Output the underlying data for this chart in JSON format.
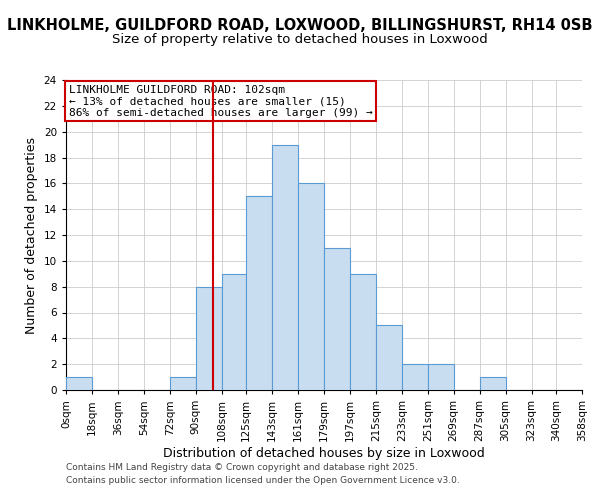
{
  "title1": "LINKHOLME, GUILDFORD ROAD, LOXWOOD, BILLINGSHURST, RH14 0SB",
  "title2": "Size of property relative to detached houses in Loxwood",
  "xlabel": "Distribution of detached houses by size in Loxwood",
  "ylabel": "Number of detached properties",
  "bin_edges": [
    0,
    18,
    36,
    54,
    72,
    90,
    108,
    125,
    143,
    161,
    179,
    197,
    215,
    233,
    251,
    269,
    287,
    305,
    323,
    340,
    358
  ],
  "bin_counts": [
    1,
    0,
    0,
    0,
    1,
    8,
    9,
    15,
    19,
    16,
    11,
    9,
    5,
    2,
    2,
    0,
    1,
    0,
    0,
    0
  ],
  "bar_color": "#c9ddf0",
  "bar_edge_color": "#5b9bd5",
  "vline_x": 102,
  "vline_color": "#cc0000",
  "annotation_text": "LINKHOLME GUILDFORD ROAD: 102sqm\n← 13% of detached houses are smaller (15)\n86% of semi-detached houses are larger (99) →",
  "ylim": [
    0,
    24
  ],
  "yticks": [
    0,
    2,
    4,
    6,
    8,
    10,
    12,
    14,
    16,
    18,
    20,
    22,
    24
  ],
  "tick_labels": [
    "0sqm",
    "18sqm",
    "36sqm",
    "54sqm",
    "72sqm",
    "90sqm",
    "108sqm",
    "125sqm",
    "143sqm",
    "161sqm",
    "179sqm",
    "197sqm",
    "215sqm",
    "233sqm",
    "251sqm",
    "269sqm",
    "287sqm",
    "305sqm",
    "323sqm",
    "340sqm",
    "358sqm"
  ],
  "footer1": "Contains HM Land Registry data © Crown copyright and database right 2025.",
  "footer2": "Contains public sector information licensed under the Open Government Licence v3.0.",
  "bg_color": "#ffffff",
  "grid_color": "#cccccc",
  "title1_fontsize": 10.5,
  "title2_fontsize": 9.5,
  "axis_label_fontsize": 9,
  "tick_fontsize": 7.5,
  "annotation_fontsize": 8,
  "footer_fontsize": 6.5
}
